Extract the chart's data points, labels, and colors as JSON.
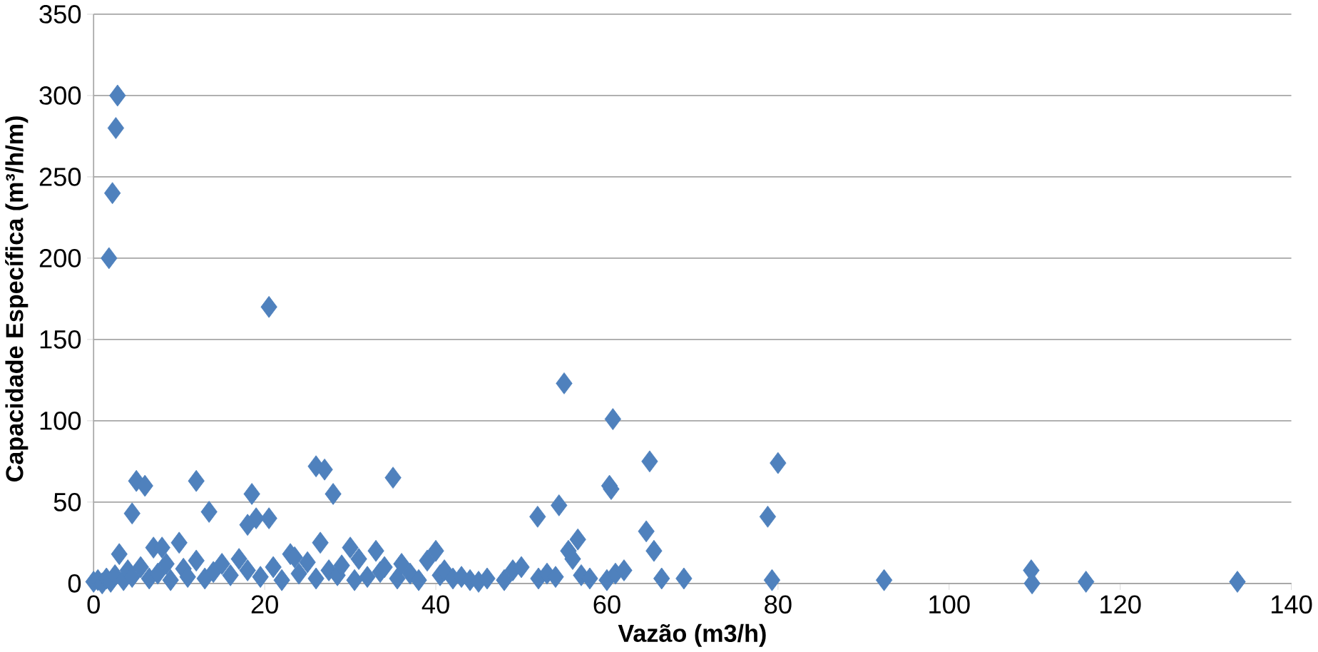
{
  "chart_data": {
    "type": "scatter",
    "xlabel": "Vazão (m3/h)",
    "ylabel": "Capacidade Específica (m³/h/m)",
    "marker": "diamond",
    "grid": "y",
    "xlim": [
      0,
      140
    ],
    "xticks": [
      0,
      20,
      40,
      60,
      80,
      100,
      120,
      140
    ],
    "ylim": [
      0,
      350
    ],
    "yticks": [
      0,
      50,
      100,
      150,
      200,
      250,
      300,
      350
    ],
    "series": [
      {
        "color": "#4f81bd",
        "x": [
          2.8,
          2.6,
          2.2,
          1.8,
          20.5,
          55,
          60.7,
          65,
          80,
          26,
          27,
          35,
          5,
          12,
          6,
          60.3,
          60.5,
          18.5,
          28,
          54.4,
          13.5,
          4.5,
          51.9,
          78.8,
          19,
          20.5,
          18,
          64.6,
          56.6,
          10,
          7,
          8,
          30,
          33,
          40,
          65.5,
          55.5,
          23,
          26.5,
          3,
          0,
          0.5,
          1,
          1.5,
          2,
          2.5,
          3.5,
          4,
          4.5,
          5.5,
          6.5,
          7.5,
          8.5,
          9,
          10.5,
          11,
          12,
          13,
          14,
          15,
          16,
          17,
          18,
          19.5,
          21,
          22,
          23.5,
          24,
          25,
          26,
          27.5,
          28.5,
          29,
          30.5,
          31,
          32,
          33.5,
          34,
          35.5,
          36,
          37,
          38,
          39,
          40.5,
          41,
          42,
          43,
          44,
          45,
          46,
          48,
          49,
          50,
          52,
          53,
          54,
          56,
          57,
          58,
          60,
          61,
          62,
          66.4,
          69,
          79.3,
          92.4,
          109.6,
          109.7,
          116,
          133.7
        ],
        "values": [
          300,
          280,
          240,
          200,
          170,
          123,
          101,
          75,
          74,
          72,
          70,
          65,
          63,
          63,
          60,
          60,
          58,
          55,
          55,
          48,
          44,
          43,
          41,
          41,
          40,
          40,
          36,
          32,
          27,
          25,
          22,
          22,
          22,
          20,
          20,
          20,
          20,
          18,
          25,
          18,
          1,
          2,
          0,
          3,
          1,
          5,
          2,
          8,
          4,
          10,
          3,
          6,
          12,
          2,
          9,
          4,
          14,
          3,
          7,
          12,
          5,
          15,
          8,
          4,
          10,
          2,
          16,
          6,
          13,
          3,
          8,
          5,
          11,
          2,
          15,
          4,
          7,
          10,
          3,
          12,
          6,
          2,
          14,
          5,
          8,
          3,
          4,
          2,
          1,
          3,
          2,
          8,
          10,
          3,
          6,
          4,
          15,
          5,
          3,
          2,
          6,
          8,
          3,
          3,
          2,
          2,
          8,
          0,
          1,
          1
        ]
      }
    ]
  }
}
